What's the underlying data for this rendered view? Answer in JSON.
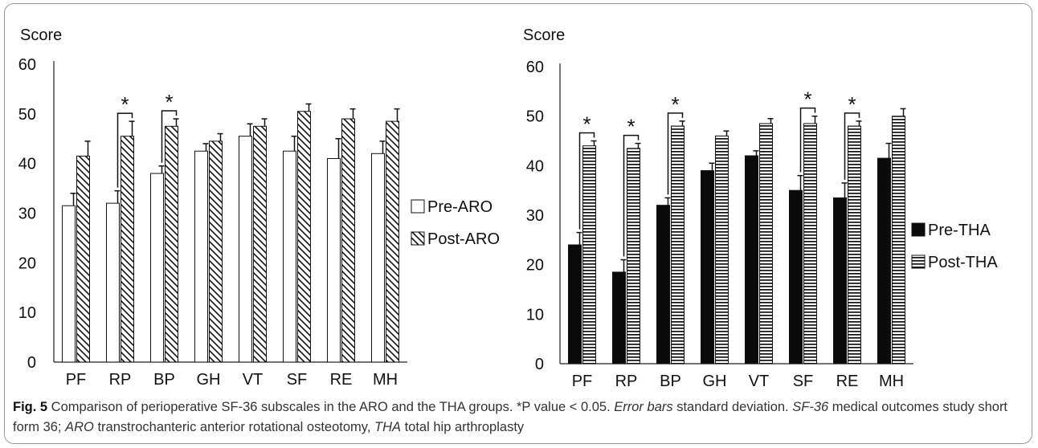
{
  "chart_data": [
    {
      "type": "bar",
      "ylabel": "Score",
      "ylim": [
        0,
        60
      ],
      "yticks": [
        0,
        10,
        20,
        30,
        40,
        50,
        60
      ],
      "categories": [
        "PF",
        "RP",
        "BP",
        "GH",
        "VT",
        "SF",
        "RE",
        "MH"
      ],
      "series": [
        {
          "name": "Pre-ARO",
          "values": [
            31.5,
            32,
            38,
            42.5,
            45.5,
            42.5,
            41,
            42
          ],
          "errors": [
            2.5,
            2.5,
            1.5,
            1.5,
            2.5,
            3,
            4,
            2.5
          ],
          "fill": "hollow"
        },
        {
          "name": "Post-ARO",
          "values": [
            41.5,
            45.5,
            47.5,
            44.5,
            47.5,
            50.5,
            49,
            48.5
          ],
          "errors": [
            3,
            3,
            1.5,
            1.5,
            1.5,
            1.5,
            2,
            2.5
          ],
          "fill": "diagonal-hatch"
        }
      ],
      "significant": [
        "RP",
        "BP"
      ],
      "significance_mark": "*",
      "legend_position": "right"
    },
    {
      "type": "bar",
      "ylabel": "Score",
      "ylim": [
        0,
        60
      ],
      "yticks": [
        0,
        10,
        20,
        30,
        40,
        50,
        60
      ],
      "categories": [
        "PF",
        "RP",
        "BP",
        "GH",
        "VT",
        "SF",
        "RE",
        "MH"
      ],
      "series": [
        {
          "name": "Pre-THA",
          "values": [
            24,
            18.5,
            32,
            39,
            42,
            35,
            33.5,
            41.5
          ],
          "errors": [
            2.5,
            2.5,
            1.5,
            1.5,
            1,
            3,
            3,
            3
          ],
          "fill": "solid-black"
        },
        {
          "name": "Post-THA",
          "values": [
            44,
            43.5,
            48,
            46,
            48.5,
            48.5,
            48,
            50
          ],
          "errors": [
            1,
            1,
            1,
            1,
            1,
            1.5,
            1,
            1.5
          ],
          "fill": "horizontal-stripes"
        }
      ],
      "significant": [
        "PF",
        "RP",
        "BP",
        "SF",
        "RE"
      ],
      "significance_mark": "*",
      "legend_position": "right"
    }
  ],
  "caption": {
    "label": "Fig. 5",
    "text1": " Comparison of perioperative SF-36 subscales in the ARO and the THA groups. *P value < 0.05. ",
    "em1": "Error bars",
    "text2": " standard deviation. ",
    "em2": "SF-36",
    "text3": " medical outcomes study short form 36; ",
    "em3": "ARO",
    "text4": " transtrochanteric anterior rotational osteotomy, ",
    "em4": "THA",
    "text5": " total hip arthroplasty"
  }
}
